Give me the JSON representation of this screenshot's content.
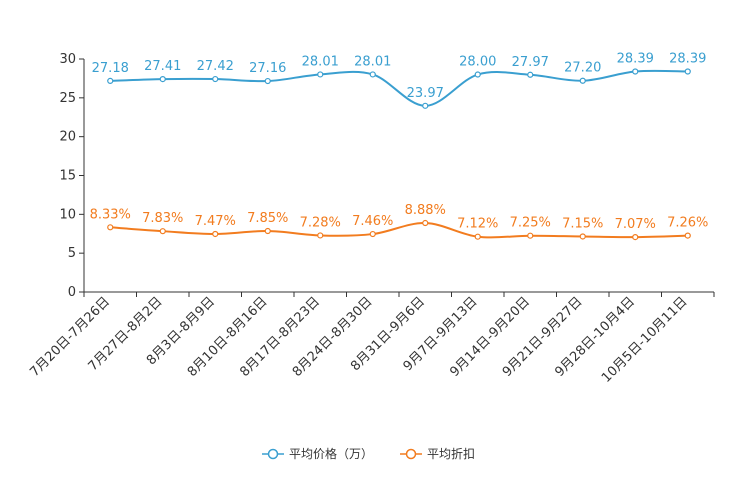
{
  "chart_data": {
    "type": "line",
    "title": "",
    "xlabel": "",
    "ylabel": "",
    "ylim": [
      0,
      30
    ],
    "yticks": [
      0,
      5,
      10,
      15,
      20,
      25,
      30
    ],
    "grid": false,
    "legend_position": "bottom",
    "categories": [
      "7月20日-7月26日",
      "7月27日-8月2日",
      "8月3日-8月9日",
      "8月10日-8月16日",
      "8月17日-8月23日",
      "8月24日-8月30日",
      "8月31日-9月6日",
      "9月7日-9月13日",
      "9月14日-9月20日",
      "9月21日-9月27日",
      "9月28日-10月4日",
      "10月5日-10月11日"
    ],
    "series": [
      {
        "name": "平均价格（万）",
        "color": "#3a9fd0",
        "values": [
          27.18,
          27.41,
          27.42,
          27.16,
          28.01,
          28.01,
          23.97,
          28.0,
          27.97,
          27.2,
          28.39,
          28.39
        ],
        "labels": [
          "27.18",
          "27.41",
          "27.42",
          "27.16",
          "28.01",
          "28.01",
          "23.97",
          "28.00",
          "27.97",
          "27.20",
          "28.39",
          "28.39"
        ]
      },
      {
        "name": "平均折扣",
        "color": "#f27c1f",
        "values": [
          8.33,
          7.83,
          7.47,
          7.85,
          7.28,
          7.46,
          8.88,
          7.12,
          7.25,
          7.15,
          7.07,
          7.26
        ],
        "labels": [
          "8.33%",
          "7.83%",
          "7.47%",
          "7.85%",
          "7.28%",
          "7.46%",
          "8.88%",
          "7.12%",
          "7.25%",
          "7.15%",
          "7.07%",
          "7.26%"
        ]
      }
    ]
  }
}
